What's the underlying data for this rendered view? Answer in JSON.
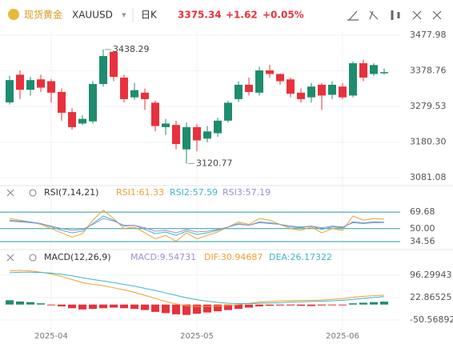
{
  "header": {
    "name": "现货黄金",
    "symbol": "XAUUSD",
    "period": "日K",
    "price": "3375.34",
    "change": "+1.62",
    "change_pct": "+0.05%"
  },
  "chart_data": [
    {
      "type": "candlestick",
      "categories": [
        null,
        null,
        null,
        null,
        "2025-04",
        null,
        null,
        null,
        null,
        null,
        null,
        null,
        null,
        null,
        null,
        null,
        null,
        null,
        "2025-05",
        null,
        null,
        null,
        null,
        null,
        null,
        null,
        null,
        null,
        null,
        null,
        null,
        null,
        "2025-06",
        null,
        null,
        null,
        null
      ],
      "open": [
        3291,
        3368,
        3326,
        3355,
        3350,
        3320,
        3264,
        3232,
        3238,
        3342,
        3432,
        3360,
        3305,
        3318,
        3290,
        3222,
        3228,
        3160,
        3222,
        3190,
        3205,
        3240,
        3300,
        3340,
        3318,
        3380,
        3370,
        3355,
        3318,
        3305,
        3340,
        3312,
        3335,
        3310,
        3400,
        3370,
        3372
      ],
      "close": [
        3353,
        3326,
        3353,
        3332,
        3318,
        3262,
        3222,
        3245,
        3342,
        3420,
        3362,
        3300,
        3325,
        3300,
        3225,
        3232,
        3175,
        3222,
        3185,
        3210,
        3240,
        3290,
        3340,
        3320,
        3380,
        3370,
        3350,
        3315,
        3300,
        3335,
        3310,
        3340,
        3305,
        3400,
        3360,
        3395,
        3375.34
      ],
      "high": [
        3365,
        3380,
        3362,
        3368,
        3356,
        3330,
        3275,
        3255,
        3350,
        3438.29,
        3436,
        3368,
        3345,
        3330,
        3295,
        3245,
        3240,
        3235,
        3230,
        3225,
        3248,
        3295,
        3350,
        3360,
        3390,
        3395,
        3372,
        3360,
        3330,
        3345,
        3345,
        3350,
        3345,
        3405,
        3410,
        3400,
        3385
      ],
      "low": [
        3285,
        3300,
        3310,
        3320,
        3290,
        3240,
        3215,
        3228,
        3232,
        3335,
        3350,
        3290,
        3298,
        3270,
        3210,
        3200,
        3160,
        3120.77,
        3155,
        3180,
        3195,
        3235,
        3292,
        3310,
        3310,
        3360,
        3340,
        3305,
        3290,
        3290,
        3270,
        3300,
        3300,
        3305,
        3350,
        3365,
        3368
      ],
      "high_label": "3438.29",
      "low_label": "3120.77",
      "up_color": "#1e8c6e",
      "down_color": "#e8313c",
      "ylim": [
        3068,
        3487
      ],
      "yticks": [
        3477.98,
        3378.76,
        3279.53,
        {
          "value": 3180.3,
          "label": "3180.30"
        },
        3081.08
      ]
    },
    {
      "type": "line",
      "title": "RSI(7,14,21)",
      "series": [
        {
          "name": "RSI1:61.33",
          "color": "#f0a030",
          "values": [
            62,
            60,
            58,
            55,
            50,
            45,
            40,
            44,
            60,
            72,
            62,
            50,
            52,
            45,
            38,
            42,
            35,
            45,
            38,
            42,
            46,
            52,
            58,
            55,
            62,
            60,
            55,
            50,
            48,
            52,
            45,
            50,
            48,
            65,
            60,
            62,
            61.33
          ]
        },
        {
          "name": "RSI2:57.59",
          "color": "#3fb5c8",
          "values": [
            60,
            59,
            58,
            56,
            52,
            48,
            45,
            47,
            56,
            65,
            60,
            53,
            54,
            49,
            44,
            46,
            42,
            47,
            43,
            45,
            48,
            52,
            56,
            54,
            58,
            57,
            55,
            52,
            51,
            53,
            49,
            52,
            51,
            58,
            57,
            58,
            57.59
          ]
        },
        {
          "name": "RSI3:57.19",
          "color": "#9b8fd0",
          "values": [
            59,
            58,
            57,
            56,
            53,
            50,
            48,
            49,
            55,
            62,
            59,
            54,
            54,
            51,
            47,
            48,
            45,
            49,
            46,
            47,
            49,
            52,
            55,
            54,
            57,
            56,
            55,
            53,
            52,
            53,
            51,
            53,
            52,
            57,
            56,
            57,
            57.19
          ]
        }
      ],
      "ylim": [
        27,
        84
      ],
      "yticks": [
        69.68,
        {
          "value": 50,
          "label": "50.00"
        },
        34.56
      ]
    },
    {
      "type": "macd",
      "title": "MACD(12,26,9)",
      "series": [
        {
          "name": "MACD:9.54731",
          "color": "#9b8fd0",
          "kind": "bar",
          "values": [
            14,
            10,
            8,
            4,
            -2,
            -6,
            -12,
            -16,
            -14,
            -12,
            -10,
            -12,
            -14,
            -18,
            -24,
            -28,
            -32,
            -34,
            -30,
            -26,
            -22,
            -18,
            -14,
            -10,
            -6,
            -4,
            -3,
            -3,
            -4,
            -5,
            -3,
            -2,
            -1,
            4,
            6,
            8,
            9.54731
          ]
        },
        {
          "name": "DIF:30.94687",
          "color": "#f0a030",
          "kind": "line",
          "values": [
            110,
            112,
            110,
            106,
            100,
            92,
            82,
            72,
            66,
            62,
            55,
            48,
            40,
            30,
            20,
            10,
            2,
            -4,
            -6,
            -6,
            -5,
            -3,
            0,
            4,
            8,
            10,
            12,
            13,
            14,
            14,
            15,
            17,
            19,
            24,
            27,
            29,
            30.94687
          ]
        },
        {
          "name": "DEA:26.17322",
          "color": "#3fb5c8",
          "kind": "line",
          "values": [
            104,
            106,
            106,
            105,
            103,
            99,
            94,
            88,
            82,
            77,
            72,
            66,
            60,
            53,
            46,
            38,
            30,
            22,
            16,
            11,
            7,
            4,
            3,
            3,
            4,
            5,
            6,
            8,
            9,
            10,
            11,
            12,
            14,
            17,
            20,
            23,
            26.17322
          ]
        }
      ],
      "pos_color": "#1e8c6e",
      "neg_color": "#e8313c",
      "ylim": [
        -82,
        138
      ],
      "yticks": [
        96.29943,
        22.86525,
        -50.56892
      ]
    }
  ]
}
